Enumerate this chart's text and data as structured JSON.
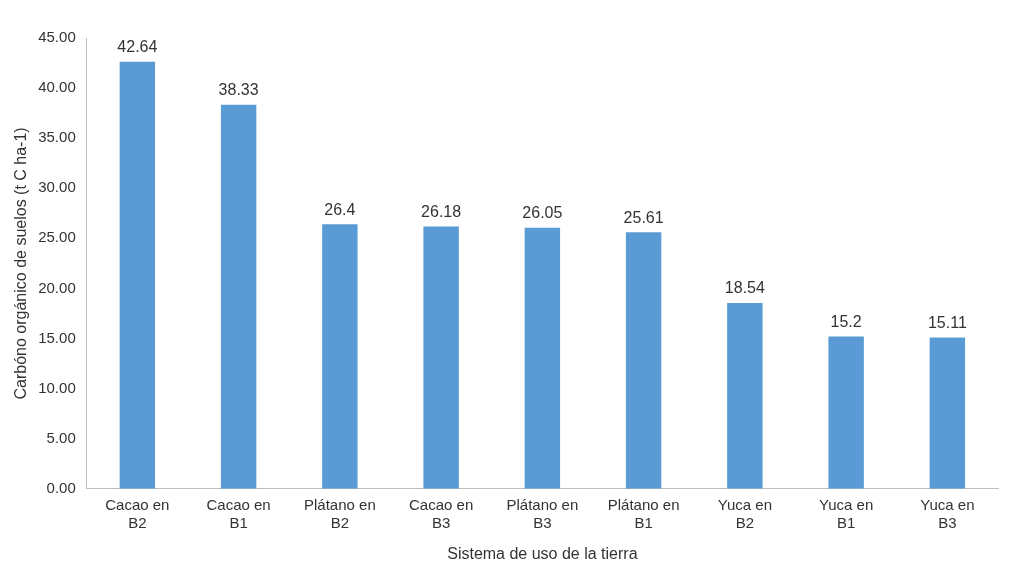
{
  "chart_data": {
    "type": "bar",
    "xlabel": "Sistema de uso de la tierra",
    "ylabel": "Carbóno orgánico de suelos (t C ha-1)",
    "categories": [
      "Cacao en B2",
      "Cacao en B1",
      "Plátano en B2",
      "Cacao en B3",
      "Plátano en B3",
      "Plátano en B1",
      "Yuca en B2",
      "Yuca en B1",
      "Yuca en B3"
    ],
    "values": [
      42.64,
      38.33,
      26.4,
      26.18,
      26.05,
      25.61,
      18.54,
      15.2,
      15.11
    ],
    "color": "#5b9bd5",
    "data_labels": true,
    "grid": false,
    "legend": false,
    "ylim": [
      0,
      45
    ],
    "yticks": [
      {
        "value": 0,
        "label": "0.00"
      },
      {
        "value": 5,
        "label": "5.00"
      },
      {
        "value": 10,
        "label": "10.00"
      },
      {
        "value": 15,
        "label": "15.00"
      },
      {
        "value": 20,
        "label": "20.00"
      },
      {
        "value": 25,
        "label": "25.00"
      },
      {
        "value": 30,
        "label": "30.00"
      },
      {
        "value": 35,
        "label": "35.00"
      },
      {
        "value": 40,
        "label": "40.00"
      },
      {
        "value": 45,
        "label": "45.00"
      }
    ]
  }
}
